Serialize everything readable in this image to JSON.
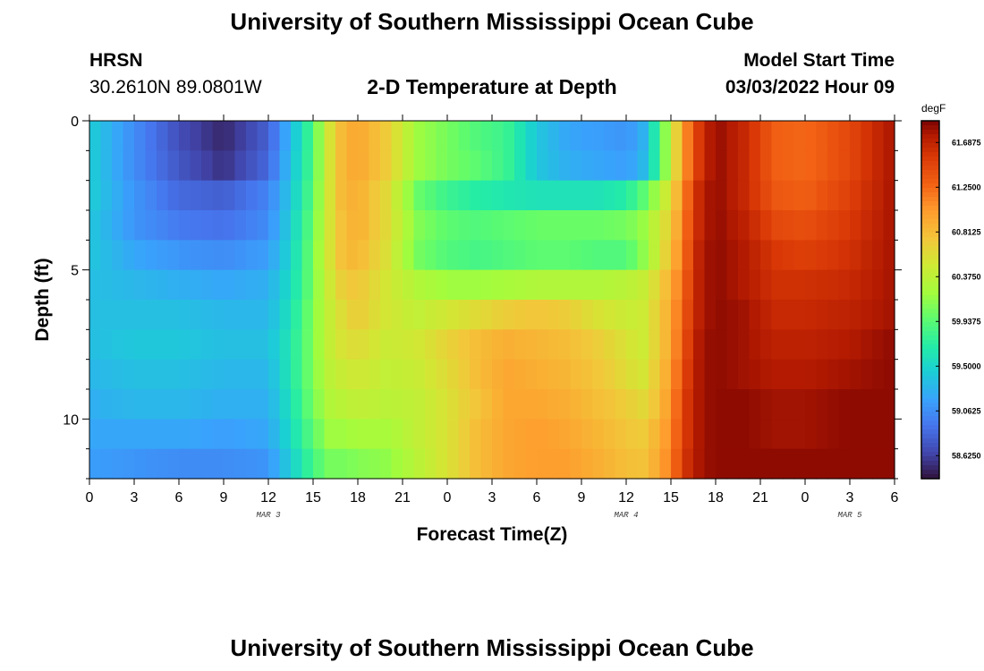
{
  "page": {
    "title": "University of Southern Mississippi Ocean Cube",
    "title_repeat": "University of Southern Mississippi Ocean Cube",
    "station": "HRSN",
    "coordinates": "30.2610N  89.0801W",
    "model_start_label": "Model Start Time",
    "model_start_value": "03/03/2022 Hour 09"
  },
  "chart_data": {
    "type": "heatmap",
    "title": "2-D Temperature at Depth",
    "xlabel": "Forecast Time(Z)",
    "ylabel": "Depth (ft)",
    "x_ticks": [
      "0",
      "3",
      "6",
      "9",
      "12",
      "15",
      "18",
      "21",
      "0",
      "3",
      "6",
      "9",
      "12",
      "15",
      "18",
      "21",
      "0",
      "3",
      "6"
    ],
    "day_labels": [
      {
        "label": "MAR 3",
        "hour": 12
      },
      {
        "label": "MAR 4",
        "hour": 36
      },
      {
        "label": "MAR 5",
        "hour": 51
      }
    ],
    "xlim": [
      0,
      54
    ],
    "y_ticks": [
      0,
      5,
      10
    ],
    "ylim": [
      0,
      12
    ],
    "y_inverted": true,
    "colorbar": {
      "unit": "degF",
      "min": 58.4,
      "max": 61.9,
      "tick_labels": [
        "61.6875",
        "61.2500",
        "60.8125",
        "60.3750",
        "59.9375",
        "59.5000",
        "59.0625",
        "58.6250"
      ],
      "tick_values": [
        61.6875,
        61.25,
        60.8125,
        60.375,
        59.9375,
        59.5,
        59.0625,
        58.625
      ]
    },
    "grid": false,
    "depth_levels": 12,
    "hour_keyframes": [
      0,
      3,
      6,
      9,
      12,
      13.5,
      15,
      16,
      17,
      18,
      20,
      22,
      24,
      26,
      28,
      30,
      32,
      34,
      36,
      37,
      38,
      39,
      40,
      41,
      42,
      44,
      46,
      48,
      51,
      54
    ],
    "temperature_by_depth_degF": [
      [
        59.45,
        59.05,
        58.7,
        58.5,
        58.8,
        59.3,
        59.9,
        60.5,
        60.85,
        60.95,
        60.7,
        60.2,
        60.05,
        59.9,
        59.8,
        59.4,
        59.2,
        59.15,
        59.1,
        59.2,
        59.7,
        60.4,
        61.1,
        61.6,
        61.85,
        61.65,
        61.3,
        61.25,
        61.45,
        61.8
      ],
      [
        59.45,
        59.05,
        58.75,
        58.55,
        58.85,
        59.35,
        59.9,
        60.5,
        60.85,
        60.95,
        60.7,
        60.2,
        60.05,
        59.95,
        59.8,
        59.4,
        59.25,
        59.2,
        59.15,
        59.25,
        59.7,
        60.4,
        61.1,
        61.6,
        61.85,
        61.65,
        61.3,
        61.25,
        61.45,
        61.8
      ],
      [
        59.45,
        59.1,
        58.85,
        58.8,
        59.0,
        59.4,
        59.95,
        60.5,
        60.85,
        60.9,
        60.6,
        60.0,
        59.8,
        59.7,
        59.65,
        59.6,
        59.6,
        59.6,
        59.7,
        59.9,
        60.2,
        60.6,
        61.2,
        61.7,
        61.85,
        61.65,
        61.35,
        61.3,
        61.5,
        61.8
      ],
      [
        59.4,
        59.1,
        58.95,
        58.9,
        59.05,
        59.45,
        60.0,
        60.5,
        60.8,
        60.9,
        60.6,
        60.1,
        59.95,
        59.9,
        59.95,
        60.0,
        60.0,
        60.0,
        60.05,
        60.15,
        60.4,
        60.7,
        61.25,
        61.7,
        61.85,
        61.7,
        61.45,
        61.4,
        61.55,
        61.8
      ],
      [
        59.4,
        59.2,
        59.1,
        59.05,
        59.15,
        59.5,
        60.05,
        60.5,
        60.8,
        60.85,
        60.55,
        60.05,
        59.9,
        59.85,
        59.9,
        59.95,
        59.95,
        59.9,
        59.9,
        60.1,
        60.4,
        60.8,
        61.3,
        61.75,
        61.85,
        61.75,
        61.55,
        61.5,
        61.6,
        61.8
      ],
      [
        59.35,
        59.3,
        59.25,
        59.2,
        59.25,
        59.55,
        60.05,
        60.45,
        60.7,
        60.75,
        60.5,
        60.3,
        60.2,
        60.2,
        60.25,
        60.3,
        60.3,
        60.3,
        60.35,
        60.4,
        60.6,
        60.9,
        61.35,
        61.75,
        61.85,
        61.75,
        61.6,
        61.6,
        61.65,
        61.8
      ],
      [
        59.35,
        59.35,
        59.35,
        59.3,
        59.3,
        59.6,
        60.1,
        60.4,
        60.6,
        60.7,
        60.5,
        60.4,
        60.5,
        60.6,
        60.7,
        60.75,
        60.7,
        60.55,
        60.45,
        60.45,
        60.65,
        60.95,
        61.4,
        61.75,
        61.85,
        61.8,
        61.65,
        61.65,
        61.7,
        61.8
      ],
      [
        59.35,
        59.4,
        59.4,
        59.35,
        59.35,
        59.65,
        60.1,
        60.4,
        60.55,
        60.6,
        60.45,
        60.5,
        60.65,
        60.8,
        60.9,
        60.85,
        60.8,
        60.7,
        60.55,
        60.45,
        60.65,
        60.95,
        61.45,
        61.8,
        61.85,
        61.8,
        61.7,
        61.7,
        61.75,
        61.85
      ],
      [
        59.3,
        59.35,
        59.35,
        59.3,
        59.3,
        59.65,
        60.1,
        60.35,
        60.45,
        60.5,
        60.4,
        60.45,
        60.6,
        60.8,
        60.95,
        60.9,
        60.85,
        60.75,
        60.6,
        60.5,
        60.7,
        61.0,
        61.5,
        61.8,
        61.85,
        61.8,
        61.75,
        61.75,
        61.8,
        61.85
      ],
      [
        59.25,
        59.3,
        59.3,
        59.25,
        59.25,
        59.6,
        60.05,
        60.3,
        60.35,
        60.4,
        60.35,
        60.4,
        60.55,
        60.75,
        60.95,
        60.95,
        60.9,
        60.8,
        60.7,
        60.6,
        60.75,
        61.05,
        61.55,
        61.8,
        61.85,
        61.85,
        61.8,
        61.8,
        61.85,
        61.85
      ],
      [
        59.2,
        59.2,
        59.2,
        59.15,
        59.2,
        59.55,
        59.95,
        60.2,
        60.2,
        60.25,
        60.25,
        60.4,
        60.55,
        60.8,
        60.95,
        61.0,
        60.95,
        60.85,
        60.75,
        60.7,
        60.85,
        61.1,
        61.55,
        61.8,
        61.85,
        61.85,
        61.8,
        61.8,
        61.85,
        61.85
      ],
      [
        59.15,
        59.1,
        59.05,
        59.05,
        59.1,
        59.45,
        59.85,
        60.05,
        60.05,
        60.1,
        60.15,
        60.35,
        60.55,
        60.8,
        60.95,
        61.0,
        61.0,
        60.9,
        60.8,
        60.75,
        60.9,
        61.15,
        61.6,
        61.8,
        61.85,
        61.85,
        61.85,
        61.85,
        61.85,
        61.85
      ]
    ]
  }
}
